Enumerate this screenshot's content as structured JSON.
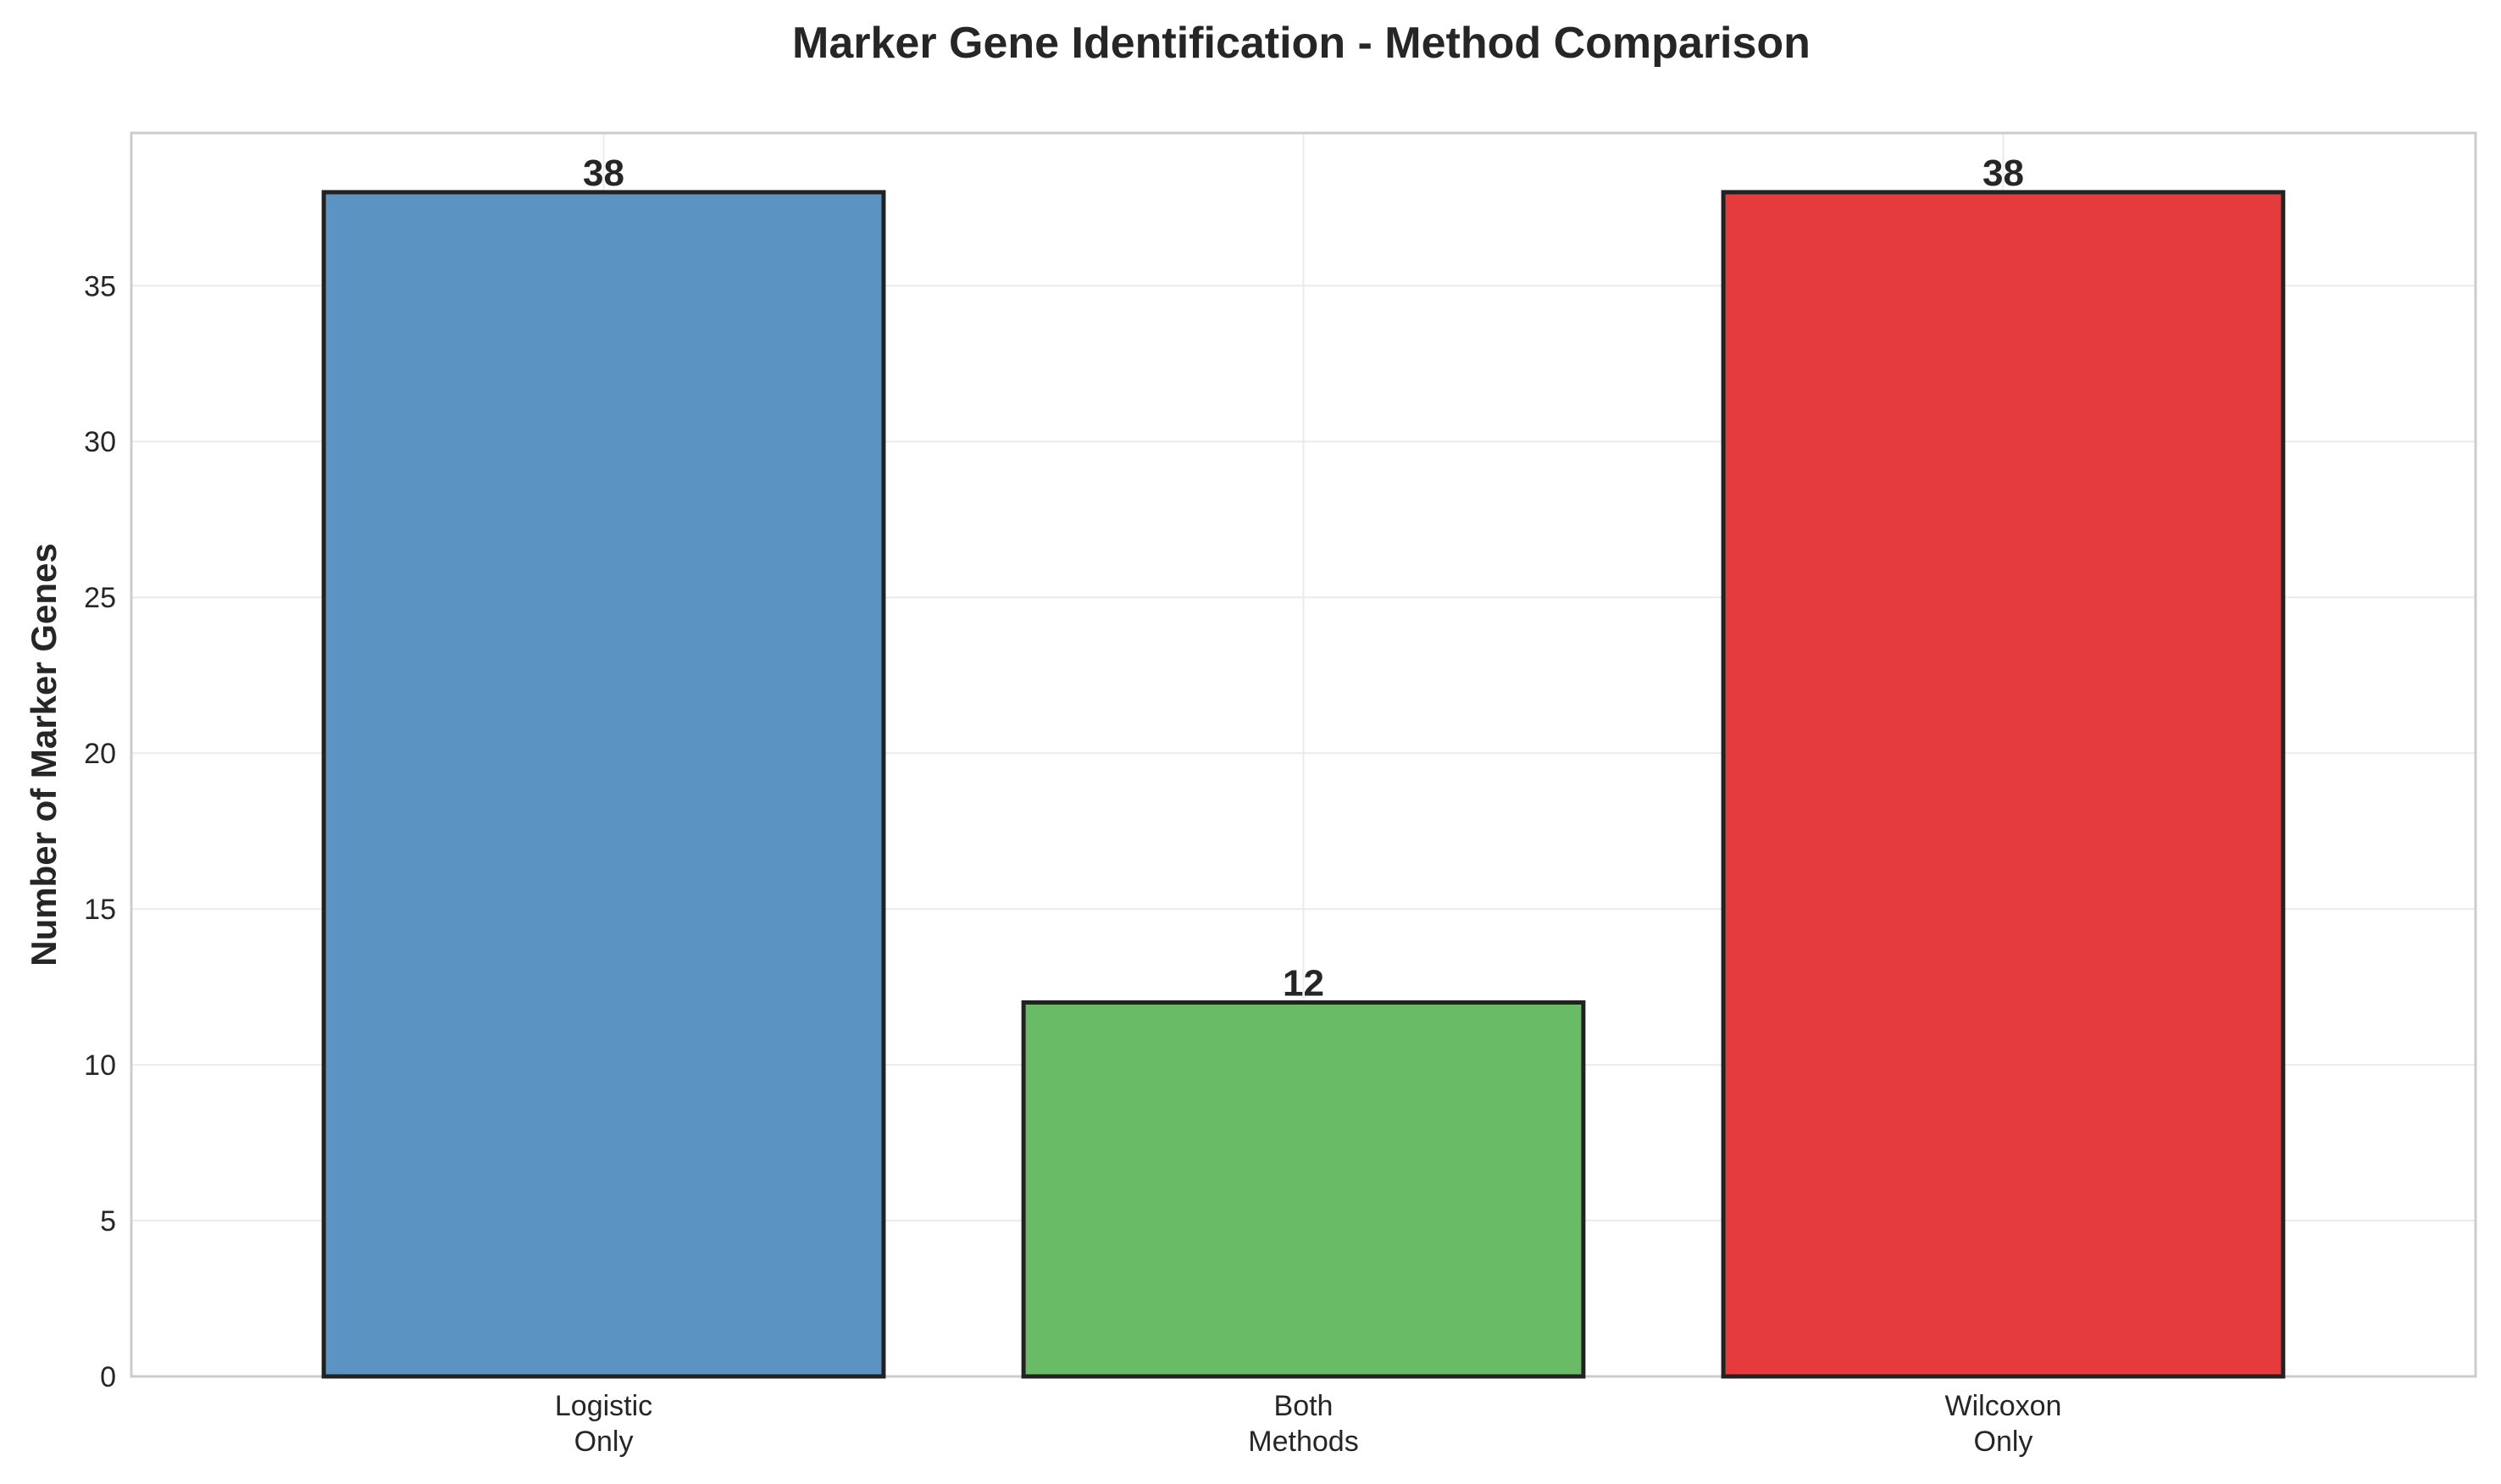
{
  "chart_data": {
    "type": "bar",
    "title": "Marker Gene Identification - Method Comparison",
    "xlabel": "",
    "ylabel": "Number of Marker Genes",
    "categories": [
      [
        "Logistic",
        "Only"
      ],
      [
        "Both",
        "Methods"
      ],
      [
        "Wilcoxon",
        "Only"
      ]
    ],
    "values": [
      38,
      12,
      38
    ],
    "data_labels": [
      "38",
      "12",
      "38"
    ],
    "colors": [
      "#5b93c3",
      "#6abb66",
      "#e53b3c"
    ],
    "ylim": [
      0,
      39.9
    ],
    "yticks": [
      0,
      5,
      10,
      15,
      20,
      25,
      30,
      35
    ],
    "grid": true
  }
}
